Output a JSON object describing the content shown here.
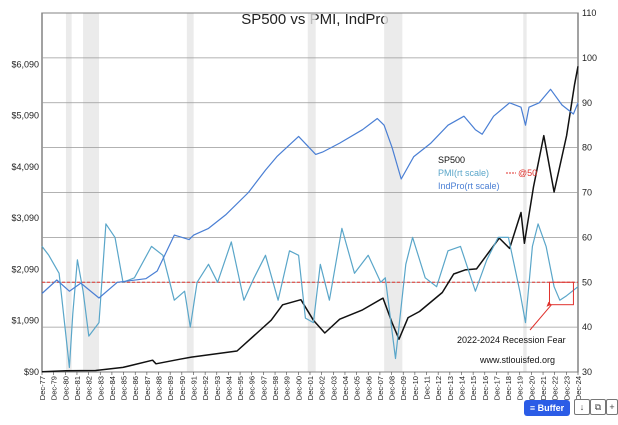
{
  "chart_data": {
    "type": "line",
    "title": "SP500 vs PMI, IndPro",
    "x_tick_labels": [
      "Dec-77",
      "Dec-79",
      "Dec-80",
      "Dec-81",
      "Dec-82",
      "Dec-83",
      "Dec-84",
      "Dec-85",
      "Dec-86",
      "Dec-87",
      "Dec-88",
      "Dec-89",
      "Dec-90",
      "Dec-91",
      "Dec-92",
      "Dec-93",
      "Dec-94",
      "Dec-95",
      "Dec-96",
      "Dec-97",
      "Dec-98",
      "Dec-99",
      "Dec-00",
      "Dec-01",
      "Dec-02",
      "Dec-03",
      "Dec-04",
      "Dec-05",
      "Dec-06",
      "Dec-07",
      "Dec-08",
      "Dec-09",
      "Dec-10",
      "Dec-11",
      "Dec-12",
      "Dec-13",
      "Dec-14",
      "Dec-15",
      "Dec-16",
      "Dec-17",
      "Dec-18",
      "Dec-19",
      "Dec-20",
      "Dec-21",
      "Dec-22",
      "Dec-23",
      "Dec-24"
    ],
    "x_range": [
      1977.9,
      2024.9
    ],
    "y_left": {
      "ticks": [
        "$90",
        "$1,090",
        "$2,090",
        "$3,090",
        "$4,090",
        "$5,090",
        "$6,090"
      ],
      "tick_values": [
        90,
        1090,
        2090,
        3090,
        4090,
        5090,
        6090
      ],
      "range": [
        90,
        7090
      ]
    },
    "y_right": {
      "ticks": [
        "30",
        "40",
        "50",
        "60",
        "70",
        "80",
        "90",
        "100",
        "110"
      ],
      "tick_values": [
        30,
        40,
        50,
        60,
        70,
        80,
        90,
        100,
        110
      ],
      "range": [
        30,
        110
      ]
    },
    "grid": true,
    "reference_line": {
      "label": "@50",
      "value": 50,
      "axis": "right",
      "color": "#e0322d"
    },
    "recession_bands": [
      [
        1980.0,
        1980.5
      ],
      [
        1981.5,
        1982.9
      ],
      [
        1990.6,
        1991.2
      ],
      [
        2001.2,
        2001.9
      ],
      [
        2007.9,
        2009.5
      ],
      [
        2020.1,
        2020.4
      ]
    ],
    "legend": {
      "placement": "right-middle",
      "entries": [
        {
          "label": "SP500",
          "color": "#111111"
        },
        {
          "label": "PMI(rt scale)",
          "color": "#5aa6c9",
          "suffix": "@50",
          "suffix_color": "#e0322d"
        },
        {
          "label": "IndPro(rt scale)",
          "color": "#4a7fd4"
        }
      ]
    },
    "series": [
      {
        "name": "SP500",
        "axis": "left",
        "color": "#111111",
        "points": [
          [
            1977.9,
            95
          ],
          [
            1980,
            115
          ],
          [
            1982.6,
            120
          ],
          [
            1985,
            180
          ],
          [
            1987.6,
            320
          ],
          [
            1987.9,
            250
          ],
          [
            1990,
            340
          ],
          [
            1991,
            380
          ],
          [
            1995,
            500
          ],
          [
            1997,
            900
          ],
          [
            1998,
            1100
          ],
          [
            1999,
            1400
          ],
          [
            2000.6,
            1500
          ],
          [
            2001.7,
            1100
          ],
          [
            2002.7,
            850
          ],
          [
            2004,
            1120
          ],
          [
            2006,
            1300
          ],
          [
            2007.8,
            1530
          ],
          [
            2008.6,
            1050
          ],
          [
            2009.2,
            730
          ],
          [
            2010,
            1150
          ],
          [
            2011,
            1270
          ],
          [
            2013,
            1640
          ],
          [
            2014,
            2000
          ],
          [
            2015,
            2080
          ],
          [
            2016,
            2100
          ],
          [
            2017,
            2400
          ],
          [
            2018,
            2700
          ],
          [
            2018.9,
            2500
          ],
          [
            2019.9,
            3200
          ],
          [
            2020.2,
            2600
          ],
          [
            2021,
            3700
          ],
          [
            2021.9,
            4700
          ],
          [
            2022.8,
            3600
          ],
          [
            2023.9,
            4700
          ],
          [
            2024.6,
            5700
          ],
          [
            2024.9,
            6050
          ]
        ]
      },
      {
        "name": "PMI(rt scale)",
        "axis": "right",
        "color": "#5aa6c9",
        "points": [
          [
            1977.9,
            58
          ],
          [
            1978.5,
            56
          ],
          [
            1979.4,
            52
          ],
          [
            1980.3,
            31
          ],
          [
            1980.6,
            43
          ],
          [
            1981.0,
            55
          ],
          [
            1981.5,
            48
          ],
          [
            1982.0,
            38
          ],
          [
            1982.9,
            41
          ],
          [
            1983.5,
            63
          ],
          [
            1984.3,
            60
          ],
          [
            1985.0,
            50
          ],
          [
            1986.0,
            51
          ],
          [
            1987.5,
            58
          ],
          [
            1988.5,
            56
          ],
          [
            1989.5,
            46
          ],
          [
            1990.4,
            48
          ],
          [
            1990.9,
            40
          ],
          [
            1991.5,
            50
          ],
          [
            1992.5,
            54
          ],
          [
            1993.3,
            50
          ],
          [
            1994.5,
            59
          ],
          [
            1995.6,
            46
          ],
          [
            1996.5,
            51
          ],
          [
            1997.5,
            56
          ],
          [
            1998.6,
            46
          ],
          [
            1999.6,
            57
          ],
          [
            2000.4,
            56
          ],
          [
            2001.0,
            42
          ],
          [
            2001.7,
            41
          ],
          [
            2002.3,
            54
          ],
          [
            2003.1,
            46
          ],
          [
            2004.2,
            62
          ],
          [
            2005.3,
            52
          ],
          [
            2006.5,
            56
          ],
          [
            2007.6,
            50
          ],
          [
            2008.0,
            51
          ],
          [
            2008.9,
            33
          ],
          [
            2009.8,
            54
          ],
          [
            2010.4,
            60
          ],
          [
            2011.5,
            51
          ],
          [
            2012.5,
            49
          ],
          [
            2013.5,
            57
          ],
          [
            2014.6,
            58
          ],
          [
            2015.9,
            48
          ],
          [
            2016.9,
            55
          ],
          [
            2017.9,
            60
          ],
          [
            2018.8,
            60
          ],
          [
            2019.8,
            48
          ],
          [
            2020.3,
            41
          ],
          [
            2020.9,
            58
          ],
          [
            2021.4,
            63
          ],
          [
            2022.1,
            58
          ],
          [
            2022.8,
            49
          ],
          [
            2023.3,
            46
          ],
          [
            2023.9,
            47
          ],
          [
            2024.4,
            48
          ],
          [
            2024.9,
            49
          ]
        ]
      },
      {
        "name": "IndPro(rt scale)",
        "axis": "right",
        "color": "#4a7fd4",
        "points": [
          [
            1977.9,
            47.5
          ],
          [
            1979.2,
            50.5
          ],
          [
            1980.3,
            48
          ],
          [
            1981.3,
            49.8
          ],
          [
            1982.9,
            46.5
          ],
          [
            1984.5,
            50
          ],
          [
            1987,
            50.8
          ],
          [
            1988,
            52.5
          ],
          [
            1989.5,
            60.5
          ],
          [
            1990.8,
            59.5
          ],
          [
            1991.2,
            60.5
          ],
          [
            1992.5,
            62
          ],
          [
            1994,
            65
          ],
          [
            1996,
            70
          ],
          [
            1997.5,
            75
          ],
          [
            1998.5,
            78
          ],
          [
            2000.4,
            82.5
          ],
          [
            2001.9,
            78.5
          ],
          [
            2002.5,
            79
          ],
          [
            2004,
            81
          ],
          [
            2006,
            84
          ],
          [
            2007.3,
            86.5
          ],
          [
            2007.9,
            85
          ],
          [
            2008.6,
            80
          ],
          [
            2009.4,
            73
          ],
          [
            2010.5,
            78
          ],
          [
            2012,
            81
          ],
          [
            2013.5,
            85
          ],
          [
            2014.9,
            87
          ],
          [
            2015.9,
            84
          ],
          [
            2016.5,
            83
          ],
          [
            2017.5,
            87
          ],
          [
            2018.9,
            90
          ],
          [
            2019.9,
            89
          ],
          [
            2020.3,
            85
          ],
          [
            2020.6,
            89
          ],
          [
            2021.5,
            90
          ],
          [
            2022.5,
            93
          ],
          [
            2023.5,
            89.5
          ],
          [
            2024.5,
            87.5
          ],
          [
            2024.9,
            90
          ]
        ]
      }
    ],
    "annotations": [
      {
        "text": "2022-2024 Recession Fear",
        "color": "#111111"
      },
      {
        "text": "www.stlouisfed.org",
        "color": "#111111"
      }
    ]
  },
  "toolbar": {
    "buffer_label": "Buffer",
    "buffer_icon": "buffer-icon"
  }
}
